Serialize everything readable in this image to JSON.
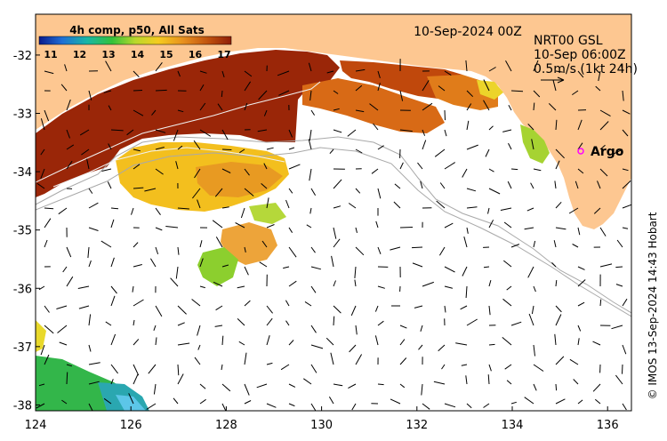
{
  "map": {
    "lon_range": [
      124,
      136.5
    ],
    "lat_range": [
      -38.1,
      -31.3
    ],
    "x_ticks": [
      124,
      126,
      128,
      130,
      132,
      134,
      136
    ],
    "x_tick_labels": [
      "124",
      "126",
      "128",
      "130",
      "132",
      "134",
      "136"
    ],
    "y_ticks": [
      -32,
      -33,
      -34,
      -35,
      -36,
      -37,
      -38
    ],
    "y_tick_labels": [
      "-32",
      "-33",
      "-34",
      "-35",
      "-36",
      "-37",
      "-38"
    ]
  },
  "colorbar": {
    "title": "4h comp, p50, All Sats",
    "labels": [
      "11",
      "12",
      "13",
      "14",
      "15",
      "16",
      "17"
    ],
    "colors": [
      "#0a1a8c",
      "#1f6fd6",
      "#19b7a6",
      "#33c23a",
      "#b9d82b",
      "#f5cc1f",
      "#e8901e",
      "#c0520e",
      "#8f1e08"
    ]
  },
  "date_label": "10-Sep-2024 00Z",
  "current_info": {
    "line1": "NRT00 GSL",
    "line2": "10-Sep 06:00Z",
    "line3": "0.5m/s (1kt 24h)"
  },
  "argo": {
    "label": "Argo",
    "marker_color": "#ff00ff"
  },
  "credit": "© IMOS 13-Sep-2024 14:43 Hobart",
  "colors": {
    "land": "#fdc791",
    "ocean_nodata": "#ffffff",
    "contour": "#a9a9a9"
  }
}
